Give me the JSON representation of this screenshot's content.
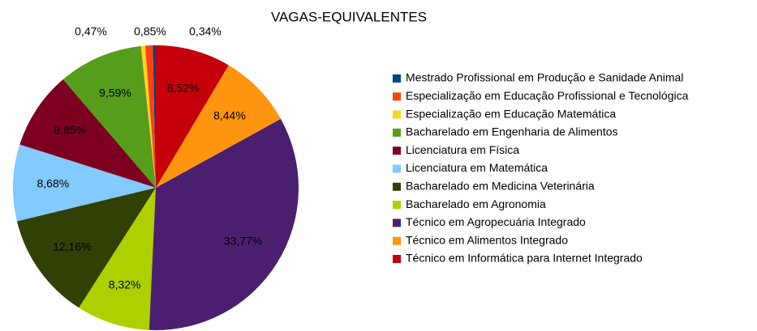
{
  "chart_data": {
    "type": "pie",
    "title": "VAGAS-EQUIVALENTES",
    "categories": [
      "Mestrado Profissional em Produção e Sanidade Animal",
      "Especialização em Educação Profissional e Tecnológica",
      "Especialização em Educação Matemática",
      "Bacharelado em Engenharia de Alimentos",
      "Licenciatura em Física",
      "Licenciatura em Matemática",
      "Bacharelado em Medicina Veterinária",
      "Bacharelado em Agronomia",
      "Técnico em Agropecuária Integrado",
      "Técnico em Alimentos Integrado",
      "Técnico em Informática para Internet Integrado"
    ],
    "values": [
      0.34,
      0.85,
      0.47,
      9.59,
      8.85,
      8.68,
      12.16,
      8.32,
      33.77,
      8.44,
      8.52
    ],
    "value_labels": [
      "0,34%",
      "0,85%",
      "0,47%",
      "9,59%",
      "8,85%",
      "8,68%",
      "12,16%",
      "8,32%",
      "33,77%",
      "8,44%",
      "8,52%"
    ],
    "colors": [
      "#004586",
      "#ff420e",
      "#ffd320",
      "#579d1c",
      "#7e0021",
      "#83caff",
      "#314004",
      "#aecf00",
      "#4b1f6f",
      "#ff950e",
      "#c5000b"
    ],
    "legend": "right"
  }
}
